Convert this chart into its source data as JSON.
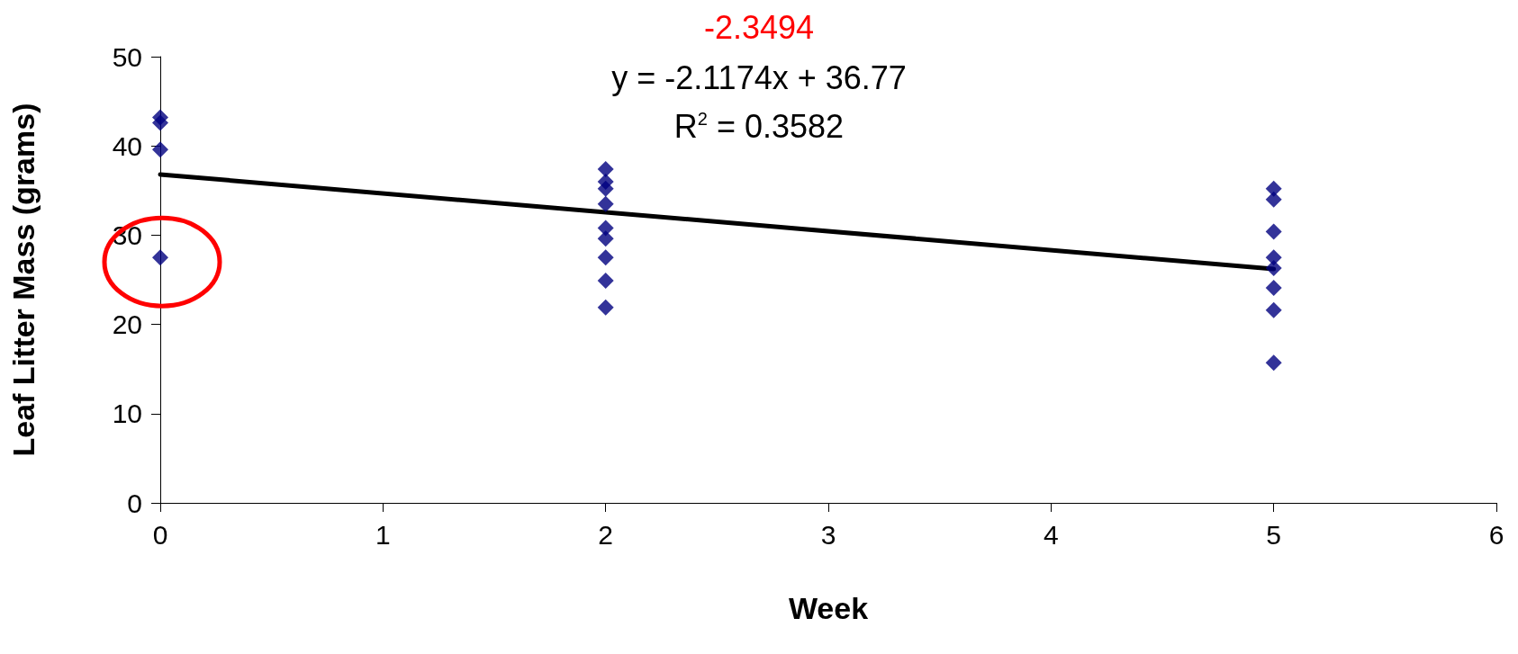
{
  "chart_data": {
    "type": "scatter",
    "xlabel": "Week",
    "ylabel": "Leaf Litter Mass (grams)",
    "annotations": [
      "-2.3494",
      "y = -2.1174x + 36.77",
      "R$^{2}$ = 0.3582"
    ],
    "series": [
      {
        "type": "scatter",
        "color": "#000080",
        "marker": "diamond",
        "x": [
          0,
          0,
          0,
          0,
          2,
          2,
          2,
          2,
          2,
          2,
          2,
          2,
          2,
          5,
          5,
          5,
          5,
          5,
          5,
          5,
          5
        ],
        "values": [
          43.2,
          42.6,
          39.6,
          27.5,
          37.4,
          36.0,
          35.2,
          33.5,
          30.8,
          29.6,
          27.5,
          24.9,
          21.9,
          35.2,
          34.0,
          30.4,
          27.5,
          26.3,
          24.1,
          21.6,
          15.7
        ]
      },
      {
        "type": "line",
        "color": "#000000",
        "marker": "none",
        "line_style": "solid",
        "x": [
          0,
          5
        ],
        "values": [
          36.8,
          26.2
        ]
      }
    ],
    "xlim": [
      0,
      6
    ],
    "xticks": [
      0,
      1,
      2,
      3,
      4,
      5,
      6
    ],
    "ylim": [
      0,
      50
    ],
    "yticks": [
      0,
      10,
      20,
      30,
      40,
      50
    ],
    "grid": false
  }
}
